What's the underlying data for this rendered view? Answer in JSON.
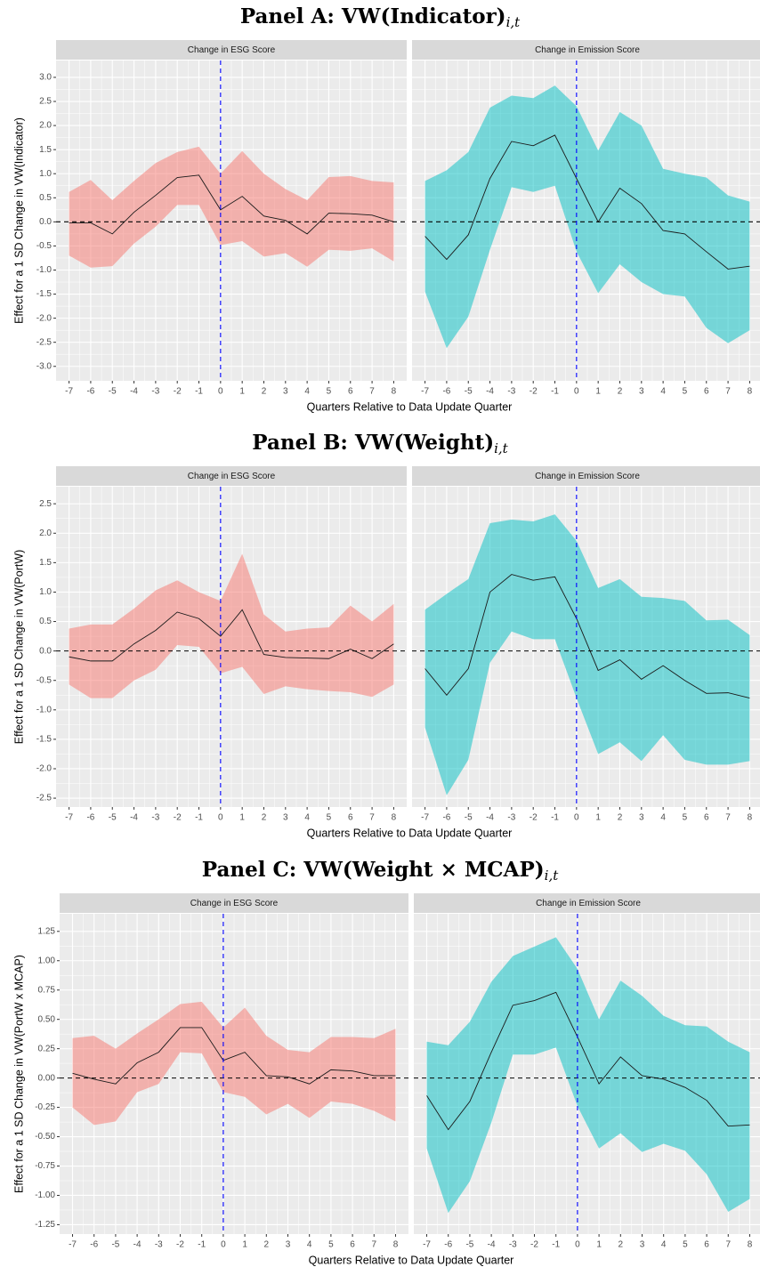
{
  "chart_data": [
    {
      "type": "ribbon-line",
      "title": "Panel A: VW(Indicator)",
      "title_subscript": "i,t",
      "ylabel": "Effect for a 1 SD Change in VW(Indicator)",
      "xlabel": "Quarters Relative to Data Update Quarter",
      "x": [
        -7,
        -6,
        -5,
        -4,
        -3,
        -2,
        -1,
        0,
        1,
        2,
        3,
        4,
        5,
        6,
        7,
        8
      ],
      "xlim": [
        -7.6,
        8.6
      ],
      "xticks": [
        -7,
        -6,
        -5,
        -4,
        -3,
        -2,
        -1,
        0,
        1,
        2,
        3,
        4,
        5,
        6,
        7,
        8
      ],
      "ylim": [
        -3.3,
        3.35
      ],
      "yticks": [
        {
          "value": -3,
          "label": "-3.0"
        },
        -2.5,
        {
          "value": -2,
          "label": "-2.0"
        },
        -1.5,
        {
          "value": -1,
          "label": "-1.0"
        },
        -0.5,
        {
          "value": 0,
          "label": "0.0"
        },
        0.5,
        {
          "value": 1,
          "label": "1.0"
        },
        1.5,
        {
          "value": 2,
          "label": "2.0"
        },
        2.5,
        {
          "value": 3,
          "label": "3.0"
        }
      ],
      "hline": {
        "value": 0,
        "color": "#000000"
      },
      "vline": {
        "value": 0,
        "color": "#0000ff"
      },
      "ribbon_alpha": 0.5,
      "facets": [
        {
          "strip": "Change in ESG Score",
          "color": "#f8766d",
          "values": [
            -0.02,
            -0.02,
            -0.25,
            0.2,
            0.55,
            0.92,
            0.97,
            0.25,
            0.53,
            0.12,
            0.03,
            -0.25,
            0.18,
            0.17,
            0.14,
            0.0
          ],
          "upper": [
            0.62,
            0.87,
            0.45,
            0.85,
            1.22,
            1.45,
            1.56,
            1.0,
            1.47,
            1.0,
            0.68,
            0.45,
            0.93,
            0.95,
            0.85,
            0.82
          ],
          "lower": [
            -0.7,
            -0.95,
            -0.92,
            -0.45,
            -0.1,
            0.35,
            0.35,
            -0.48,
            -0.4,
            -0.72,
            -0.65,
            -0.93,
            -0.58,
            -0.6,
            -0.55,
            -0.82
          ]
        },
        {
          "strip": "Change in Emission Score",
          "color": "#00bfc4",
          "values": [
            -0.3,
            -0.78,
            -0.27,
            0.9,
            1.67,
            1.58,
            1.8,
            0.9,
            0.0,
            0.7,
            0.38,
            -0.18,
            -0.25,
            -0.62,
            -0.98,
            -0.92
          ],
          "upper": [
            0.85,
            1.07,
            1.45,
            2.37,
            2.62,
            2.57,
            2.83,
            2.4,
            1.48,
            2.28,
            2.0,
            1.1,
            1.0,
            0.92,
            0.55,
            0.42
          ],
          "lower": [
            -1.45,
            -2.62,
            -1.97,
            -0.58,
            0.72,
            0.62,
            0.75,
            -0.62,
            -1.48,
            -0.88,
            -1.25,
            -1.5,
            -1.55,
            -2.2,
            -2.52,
            -2.25
          ]
        }
      ]
    },
    {
      "type": "ribbon-line",
      "title": "Panel B: VW(Weight)",
      "title_subscript": "i,t",
      "ylabel": "Effect for a 1 SD Change in VW(PortW)",
      "xlabel": "Quarters Relative to Data Update Quarter",
      "x": [
        -7,
        -6,
        -5,
        -4,
        -3,
        -2,
        -1,
        0,
        1,
        2,
        3,
        4,
        5,
        6,
        7,
        8
      ],
      "xlim": [
        -7.6,
        8.6
      ],
      "xticks": [
        -7,
        -6,
        -5,
        -4,
        -3,
        -2,
        -1,
        0,
        1,
        2,
        3,
        4,
        5,
        6,
        7,
        8
      ],
      "ylim": [
        -2.65,
        2.79
      ],
      "yticks": [
        -2.5,
        {
          "value": -2,
          "label": "-2.0"
        },
        -1.5,
        {
          "value": -1,
          "label": "-1.0"
        },
        -0.5,
        {
          "value": 0,
          "label": "0.0"
        },
        0.5,
        {
          "value": 1,
          "label": "1.0"
        },
        1.5,
        {
          "value": 2,
          "label": "2.0"
        },
        2.5
      ],
      "hline": {
        "value": 0,
        "color": "#000000"
      },
      "vline": {
        "value": 0,
        "color": "#0000ff"
      },
      "ribbon_alpha": 0.5,
      "facets": [
        {
          "strip": "Change in ESG Score",
          "color": "#f8766d",
          "values": [
            -0.1,
            -0.17,
            -0.17,
            0.12,
            0.35,
            0.66,
            0.55,
            0.25,
            0.7,
            -0.06,
            -0.11,
            -0.12,
            -0.13,
            0.03,
            -0.13,
            0.12
          ],
          "upper": [
            0.38,
            0.45,
            0.45,
            0.72,
            1.03,
            1.2,
            1.0,
            0.85,
            1.65,
            0.62,
            0.33,
            0.38,
            0.4,
            0.77,
            0.5,
            0.8
          ],
          "lower": [
            -0.57,
            -0.8,
            -0.8,
            -0.5,
            -0.32,
            0.1,
            0.07,
            -0.38,
            -0.27,
            -0.73,
            -0.6,
            -0.65,
            -0.68,
            -0.7,
            -0.78,
            -0.57
          ]
        },
        {
          "strip": "Change in Emission Score",
          "color": "#00bfc4",
          "values": [
            -0.3,
            -0.75,
            -0.3,
            1.0,
            1.3,
            1.2,
            1.26,
            0.55,
            -0.33,
            -0.15,
            -0.48,
            -0.25,
            -0.5,
            -0.72,
            -0.71,
            -0.8
          ],
          "upper": [
            0.7,
            0.97,
            1.22,
            2.17,
            2.23,
            2.2,
            2.32,
            1.87,
            1.07,
            1.22,
            0.92,
            0.9,
            0.85,
            0.52,
            0.53,
            0.27
          ],
          "lower": [
            -1.3,
            -2.45,
            -1.85,
            -0.2,
            0.33,
            0.2,
            0.2,
            -0.8,
            -1.75,
            -1.55,
            -1.87,
            -1.43,
            -1.85,
            -1.93,
            -1.93,
            -1.87
          ]
        }
      ]
    },
    {
      "type": "ribbon-line",
      "title": "Panel C: VW(Weight × MCAP)",
      "title_subscript": "i,t",
      "ylabel": "Effect for a 1 SD Change in VW(PortW x MCAP)",
      "xlabel": "Quarters Relative to Data Update Quarter",
      "x": [
        -7,
        -6,
        -5,
        -4,
        -3,
        -2,
        -1,
        0,
        1,
        2,
        3,
        4,
        5,
        6,
        7,
        8
      ],
      "xlim": [
        -7.6,
        8.6
      ],
      "xticks": [
        -7,
        -6,
        -5,
        -4,
        -3,
        -2,
        -1,
        0,
        1,
        2,
        3,
        4,
        5,
        6,
        7,
        8
      ],
      "ylim": [
        -1.33,
        1.4
      ],
      "yticks": [
        -1.25,
        {
          "value": -1,
          "label": "-1.00"
        },
        -0.75,
        {
          "value": -0.5,
          "label": "-0.50"
        },
        -0.25,
        {
          "value": 0,
          "label": "0.00"
        },
        0.25,
        {
          "value": 0.5,
          "label": "0.50"
        },
        0.75,
        {
          "value": 1,
          "label": "1.00"
        },
        1.25
      ],
      "hline": {
        "value": 0,
        "color": "#000000"
      },
      "vline": {
        "value": 0,
        "color": "#0000ff"
      },
      "ribbon_alpha": 0.5,
      "facets": [
        {
          "strip": "Change in ESG Score",
          "color": "#f8766d",
          "values": [
            0.04,
            -0.01,
            -0.05,
            0.13,
            0.22,
            0.43,
            0.43,
            0.15,
            0.22,
            0.02,
            0.01,
            -0.05,
            0.07,
            0.06,
            0.02,
            0.02
          ],
          "upper": [
            0.34,
            0.36,
            0.25,
            0.38,
            0.5,
            0.63,
            0.65,
            0.43,
            0.6,
            0.36,
            0.24,
            0.22,
            0.35,
            0.35,
            0.34,
            0.42
          ],
          "lower": [
            -0.25,
            -0.4,
            -0.37,
            -0.12,
            -0.05,
            0.22,
            0.21,
            -0.12,
            -0.16,
            -0.31,
            -0.22,
            -0.34,
            -0.2,
            -0.22,
            -0.28,
            -0.37
          ]
        },
        {
          "strip": "Change in Emission Score",
          "color": "#00bfc4",
          "values": [
            -0.15,
            -0.44,
            -0.2,
            0.22,
            0.62,
            0.66,
            0.73,
            0.35,
            -0.05,
            0.18,
            0.02,
            -0.01,
            -0.08,
            -0.19,
            -0.41,
            -0.4
          ],
          "upper": [
            0.31,
            0.28,
            0.48,
            0.82,
            1.04,
            1.12,
            1.2,
            0.93,
            0.5,
            0.83,
            0.7,
            0.53,
            0.45,
            0.44,
            0.31,
            0.22
          ],
          "lower": [
            -0.6,
            -1.15,
            -0.88,
            -0.38,
            0.2,
            0.2,
            0.26,
            -0.24,
            -0.6,
            -0.47,
            -0.63,
            -0.56,
            -0.62,
            -0.82,
            -1.14,
            -1.03
          ]
        }
      ]
    }
  ]
}
